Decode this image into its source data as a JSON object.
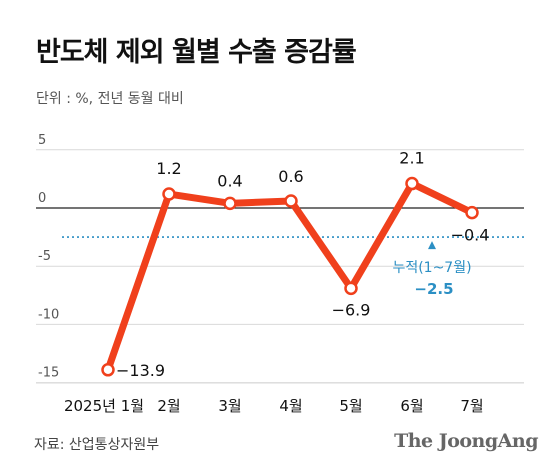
{
  "title": "반도체 제외 월별 수출 증감률",
  "subtitle": "단위 : %, 전년 동월 대비",
  "source": "자료: 산업통상자원부",
  "brand": "The JoongAng",
  "chart_data": {
    "type": "line",
    "categories": [
      "2025년 1월",
      "2월",
      "3월",
      "4월",
      "5월",
      "6월",
      "7월"
    ],
    "values": [
      -13.9,
      1.2,
      0.4,
      0.6,
      -6.9,
      2.1,
      -0.4
    ],
    "value_labels": [
      "−13.9",
      "1.2",
      "0.4",
      "0.6",
      "−6.9",
      "2.1",
      "−0.4"
    ],
    "y_ticks": [
      5,
      0,
      -5,
      -10,
      -15
    ],
    "y_tick_labels": [
      "5",
      "0",
      "-5",
      "-10",
      "-15"
    ],
    "ylim": [
      -15.5,
      5.5
    ],
    "reference_line": {
      "value": -2.5,
      "label": "누적(1~7월)",
      "value_label": "−2.5",
      "color": "#2b8fc4"
    },
    "colors": {
      "line": "#f0401c",
      "zero_line": "#222222",
      "grid": "#d9d9d9"
    },
    "grid": true
  }
}
